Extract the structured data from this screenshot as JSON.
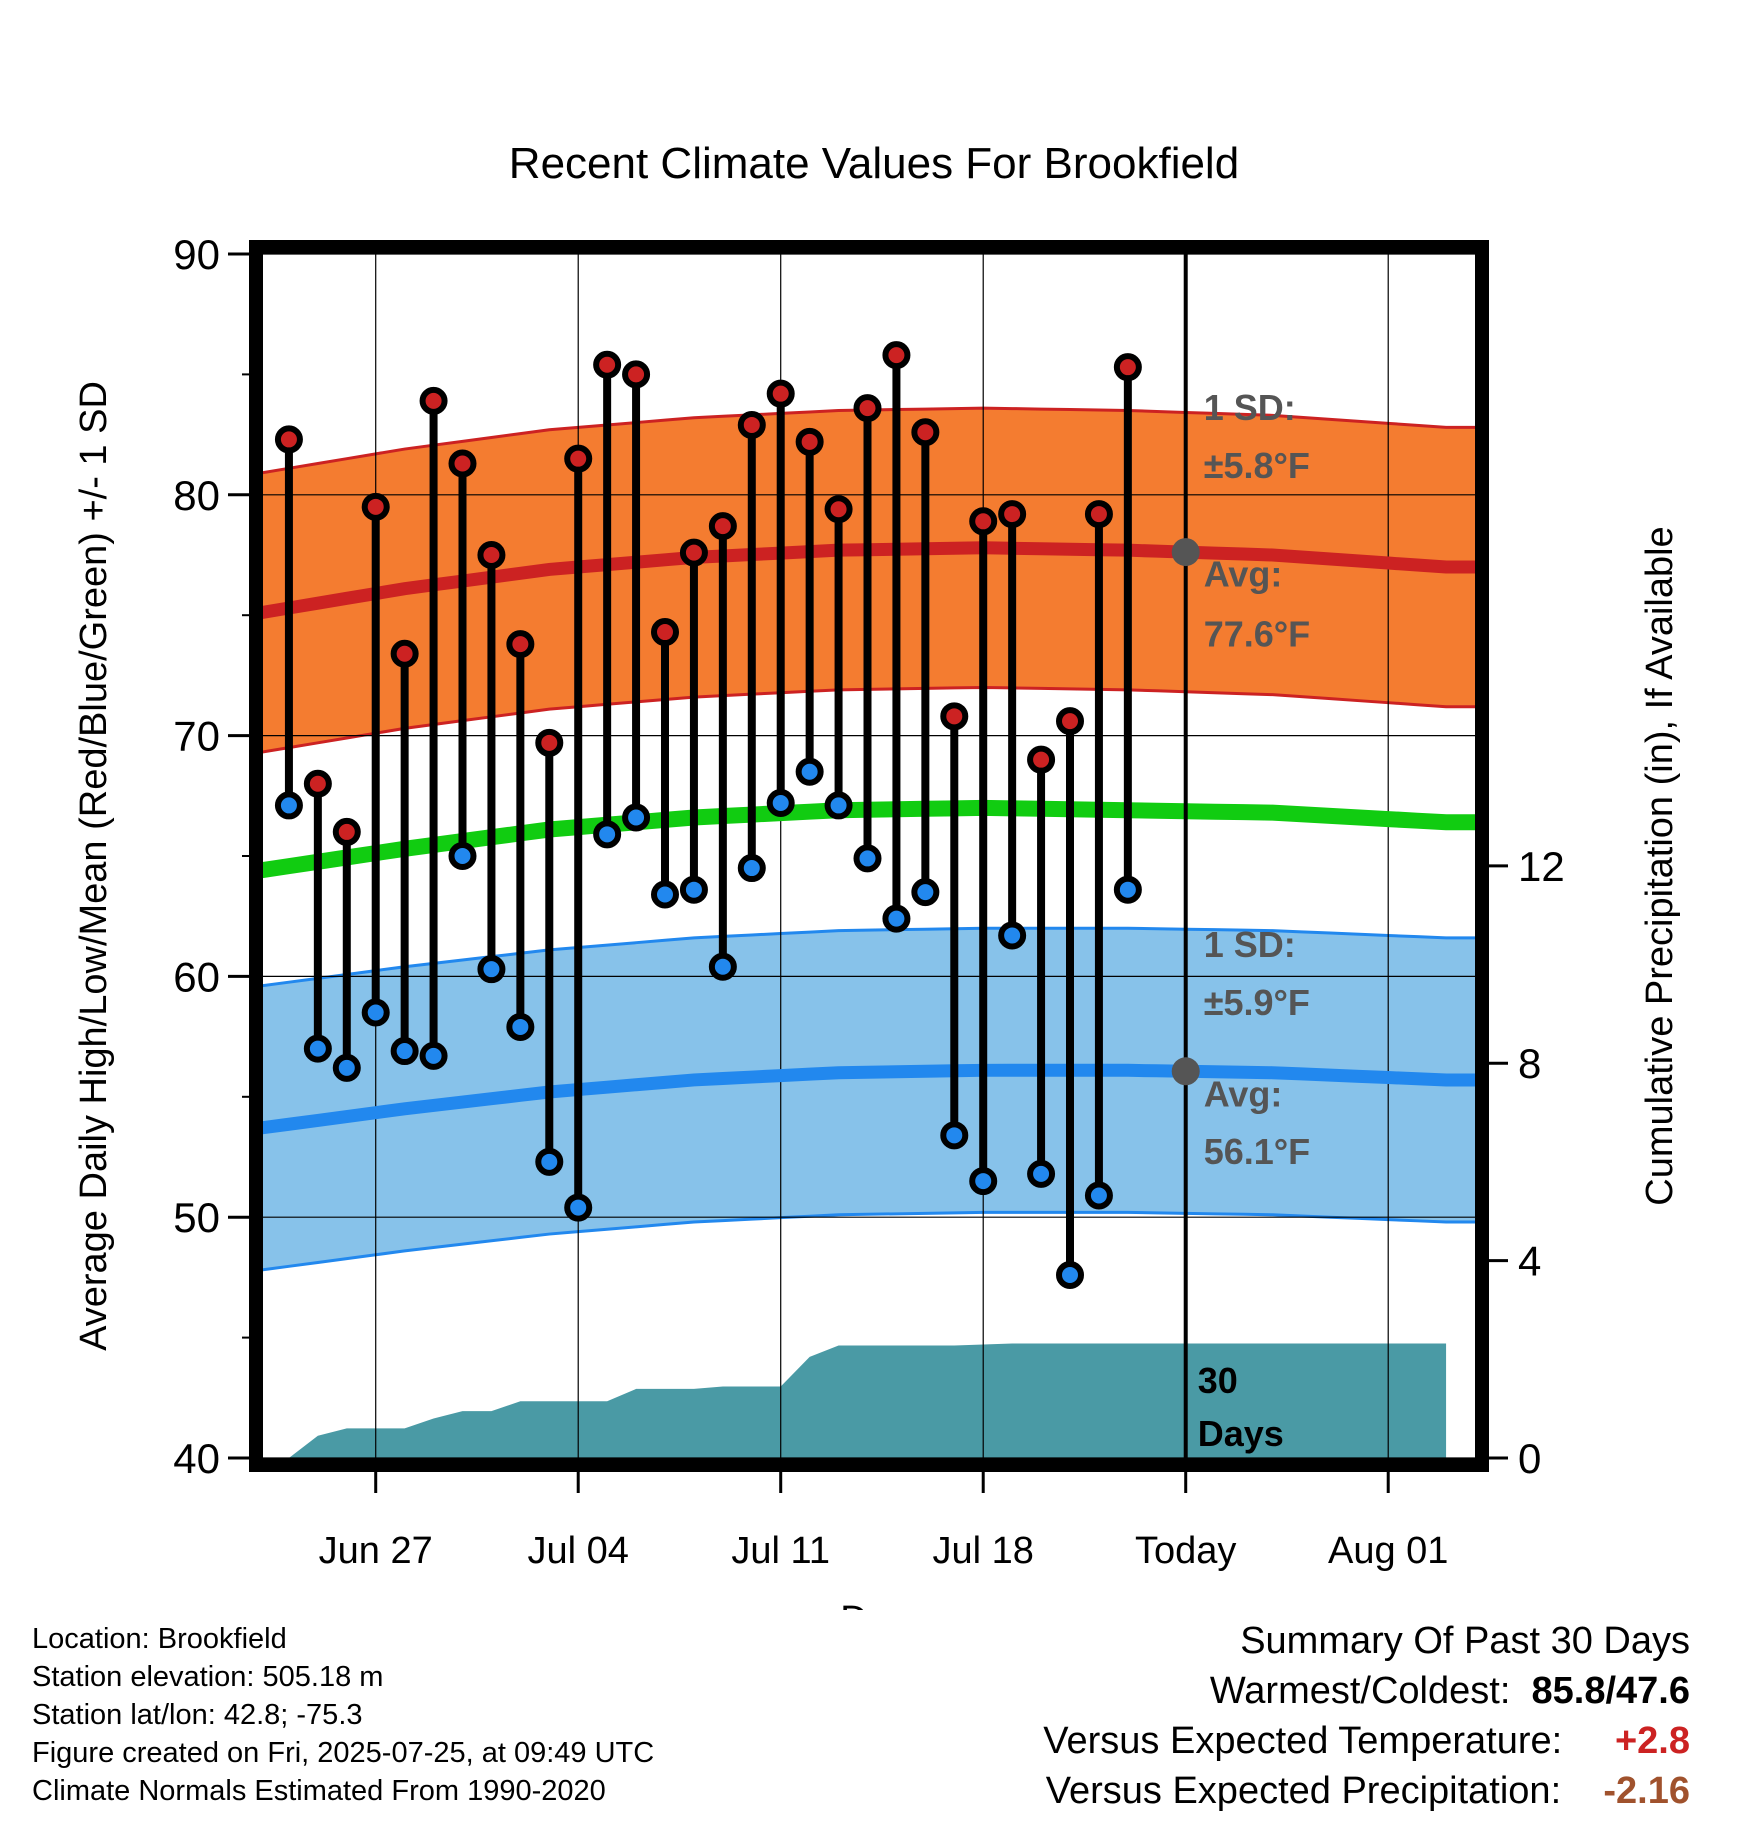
{
  "chart_data": {
    "type": "line",
    "title": "Recent Climate Values For Brookfield",
    "xlabel": "Day",
    "ylabel": "Average Daily High/Low/Mean (Red/Blue/Green) +/- 1 SD",
    "y2label": "Cumulative Precipitation (in), If Available",
    "ylim": [
      40,
      90
    ],
    "y_ticks": [
      40,
      50,
      60,
      70,
      80,
      90
    ],
    "y2lim": [
      0,
      24.4
    ],
    "y2_ticks": [
      0,
      4,
      8,
      12
    ],
    "xlim": [
      "2025-06-23",
      "2025-08-04"
    ],
    "x_ticks": [
      {
        "date": "2025-06-27",
        "label": "Jun 27"
      },
      {
        "date": "2025-07-04",
        "label": "Jul 04"
      },
      {
        "date": "2025-07-11",
        "label": "Jul 11"
      },
      {
        "date": "2025-07-18",
        "label": "Jul 18"
      },
      {
        "date": "2025-07-25",
        "label": "Today"
      },
      {
        "date": "2025-08-01",
        "label": "Aug 01"
      }
    ],
    "grid": true,
    "today": "2025-07-25",
    "normals": {
      "dates": [
        "2025-06-23",
        "2025-06-28",
        "2025-07-03",
        "2025-07-08",
        "2025-07-13",
        "2025-07-18",
        "2025-07-23",
        "2025-07-28",
        "2025-08-03"
      ],
      "high_mean": [
        75.1,
        76.1,
        76.9,
        77.4,
        77.7,
        77.8,
        77.7,
        77.5,
        77.0
      ],
      "high_sd": 5.8,
      "low_mean": [
        53.7,
        54.5,
        55.2,
        55.7,
        56.0,
        56.1,
        56.1,
        56.0,
        55.7
      ],
      "low_sd": 5.9,
      "mean": [
        64.4,
        65.3,
        66.1,
        66.6,
        66.9,
        67.0,
        66.9,
        66.8,
        66.4
      ]
    },
    "series": [
      {
        "name": "High",
        "color": "#cc2222",
        "points": [
          {
            "date": "2025-06-24",
            "value": 82.3
          },
          {
            "date": "2025-06-25",
            "value": 68.0
          },
          {
            "date": "2025-06-26",
            "value": 66.0
          },
          {
            "date": "2025-06-27",
            "value": 79.5
          },
          {
            "date": "2025-06-28",
            "value": 73.4
          },
          {
            "date": "2025-06-29",
            "value": 83.9
          },
          {
            "date": "2025-06-30",
            "value": 81.3
          },
          {
            "date": "2025-07-01",
            "value": 77.5
          },
          {
            "date": "2025-07-02",
            "value": 73.8
          },
          {
            "date": "2025-07-03",
            "value": 69.7
          },
          {
            "date": "2025-07-04",
            "value": 81.5
          },
          {
            "date": "2025-07-05",
            "value": 85.4
          },
          {
            "date": "2025-07-06",
            "value": 85.0
          },
          {
            "date": "2025-07-07",
            "value": 74.3
          },
          {
            "date": "2025-07-08",
            "value": 77.6
          },
          {
            "date": "2025-07-09",
            "value": 78.7
          },
          {
            "date": "2025-07-10",
            "value": 82.9
          },
          {
            "date": "2025-07-11",
            "value": 84.2
          },
          {
            "date": "2025-07-12",
            "value": 82.2
          },
          {
            "date": "2025-07-13",
            "value": 79.4
          },
          {
            "date": "2025-07-14",
            "value": 83.6
          },
          {
            "date": "2025-07-15",
            "value": 85.8
          },
          {
            "date": "2025-07-16",
            "value": 82.6
          },
          {
            "date": "2025-07-17",
            "value": 70.8
          },
          {
            "date": "2025-07-18",
            "value": 78.9
          },
          {
            "date": "2025-07-19",
            "value": 79.2
          },
          {
            "date": "2025-07-20",
            "value": 69.0
          },
          {
            "date": "2025-07-21",
            "value": 70.6
          },
          {
            "date": "2025-07-22",
            "value": 79.2
          },
          {
            "date": "2025-07-23",
            "value": 85.3
          }
        ]
      },
      {
        "name": "Low",
        "color": "#2288ee",
        "points": [
          {
            "date": "2025-06-24",
            "value": 67.1
          },
          {
            "date": "2025-06-25",
            "value": 57.0
          },
          {
            "date": "2025-06-26",
            "value": 56.2
          },
          {
            "date": "2025-06-27",
            "value": 58.5
          },
          {
            "date": "2025-06-28",
            "value": 56.9
          },
          {
            "date": "2025-06-29",
            "value": 56.7
          },
          {
            "date": "2025-06-30",
            "value": 65.0
          },
          {
            "date": "2025-07-01",
            "value": 60.3
          },
          {
            "date": "2025-07-02",
            "value": 57.9
          },
          {
            "date": "2025-07-03",
            "value": 52.3
          },
          {
            "date": "2025-07-04",
            "value": 50.4
          },
          {
            "date": "2025-07-05",
            "value": 65.9
          },
          {
            "date": "2025-07-06",
            "value": 66.6
          },
          {
            "date": "2025-07-07",
            "value": 63.4
          },
          {
            "date": "2025-07-08",
            "value": 63.6
          },
          {
            "date": "2025-07-09",
            "value": 60.4
          },
          {
            "date": "2025-07-10",
            "value": 64.5
          },
          {
            "date": "2025-07-11",
            "value": 67.2
          },
          {
            "date": "2025-07-12",
            "value": 68.5
          },
          {
            "date": "2025-07-13",
            "value": 67.1
          },
          {
            "date": "2025-07-14",
            "value": 64.9
          },
          {
            "date": "2025-07-15",
            "value": 62.4
          },
          {
            "date": "2025-07-16",
            "value": 63.5
          },
          {
            "date": "2025-07-17",
            "value": 53.4
          },
          {
            "date": "2025-07-18",
            "value": 51.5
          },
          {
            "date": "2025-07-19",
            "value": 61.7
          },
          {
            "date": "2025-07-20",
            "value": 51.8
          },
          {
            "date": "2025-07-21",
            "value": 47.6
          },
          {
            "date": "2025-07-22",
            "value": 50.9
          },
          {
            "date": "2025-07-23",
            "value": 63.6
          }
        ]
      }
    ],
    "precipitation": {
      "dates": [
        "2025-06-23",
        "2025-06-24",
        "2025-06-25",
        "2025-06-26",
        "2025-06-27",
        "2025-06-28",
        "2025-06-29",
        "2025-06-30",
        "2025-07-01",
        "2025-07-02",
        "2025-07-03",
        "2025-07-04",
        "2025-07-05",
        "2025-07-06",
        "2025-07-07",
        "2025-07-08",
        "2025-07-09",
        "2025-07-10",
        "2025-07-11",
        "2025-07-12",
        "2025-07-13",
        "2025-07-14",
        "2025-07-15",
        "2025-07-16",
        "2025-07-17",
        "2025-07-18",
        "2025-07-19",
        "2025-07-20",
        "2025-07-21",
        "2025-07-22",
        "2025-07-23",
        "2025-07-24",
        "2025-07-25",
        "2025-08-03"
      ],
      "cumulative_in": [
        0.0,
        0.0,
        0.45,
        0.6,
        0.6,
        0.6,
        0.8,
        0.95,
        0.95,
        1.15,
        1.15,
        1.15,
        1.15,
        1.4,
        1.4,
        1.4,
        1.45,
        1.45,
        1.45,
        2.05,
        2.28,
        2.28,
        2.28,
        2.28,
        2.28,
        2.3,
        2.32,
        2.32,
        2.32,
        2.32,
        2.32,
        2.32,
        2.32,
        2.32
      ],
      "color": "#4a9aa5",
      "label": "30 Days"
    },
    "annotations": {
      "high_sd_title": "1 SD:",
      "high_sd_value": "±5.8°F",
      "high_avg_title": "Avg:",
      "high_avg_value": "77.6°F",
      "low_sd_title": "1 SD:",
      "low_sd_value": "±5.9°F",
      "low_avg_title": "Avg:",
      "low_avg_value": "56.1°F",
      "precip_label_1": "30",
      "precip_label_2": "Days"
    },
    "colors": {
      "high_band": "#f47c30",
      "high_line": "#cc2222",
      "low_band": "#87c2ea",
      "low_line": "#2288ee",
      "mean_line": "#11cc11",
      "precip": "#4a9aa5",
      "today_marker": "#555555"
    }
  },
  "footer": {
    "location": "Location: Brookfield",
    "elevation": "Station elevation: 505.18 m",
    "latlon": "Station lat/lon: 42.8; -75.3",
    "created": "Figure created on Fri, 2025-07-25, at 09:49 UTC",
    "normals": "Climate Normals Estimated From 1990-2020"
  },
  "summary": {
    "title": "Summary Of Past 30 Days",
    "warmest_label": "Warmest/Coldest:",
    "warmest_value": "85.8/47.6",
    "temp_label": "Versus Expected Temperature:",
    "temp_value": "+2.8",
    "temp_color": "#cc2222",
    "precip_label": "Versus Expected Precipitation:",
    "precip_value": "-2.16",
    "precip_color": "#a0522d"
  }
}
